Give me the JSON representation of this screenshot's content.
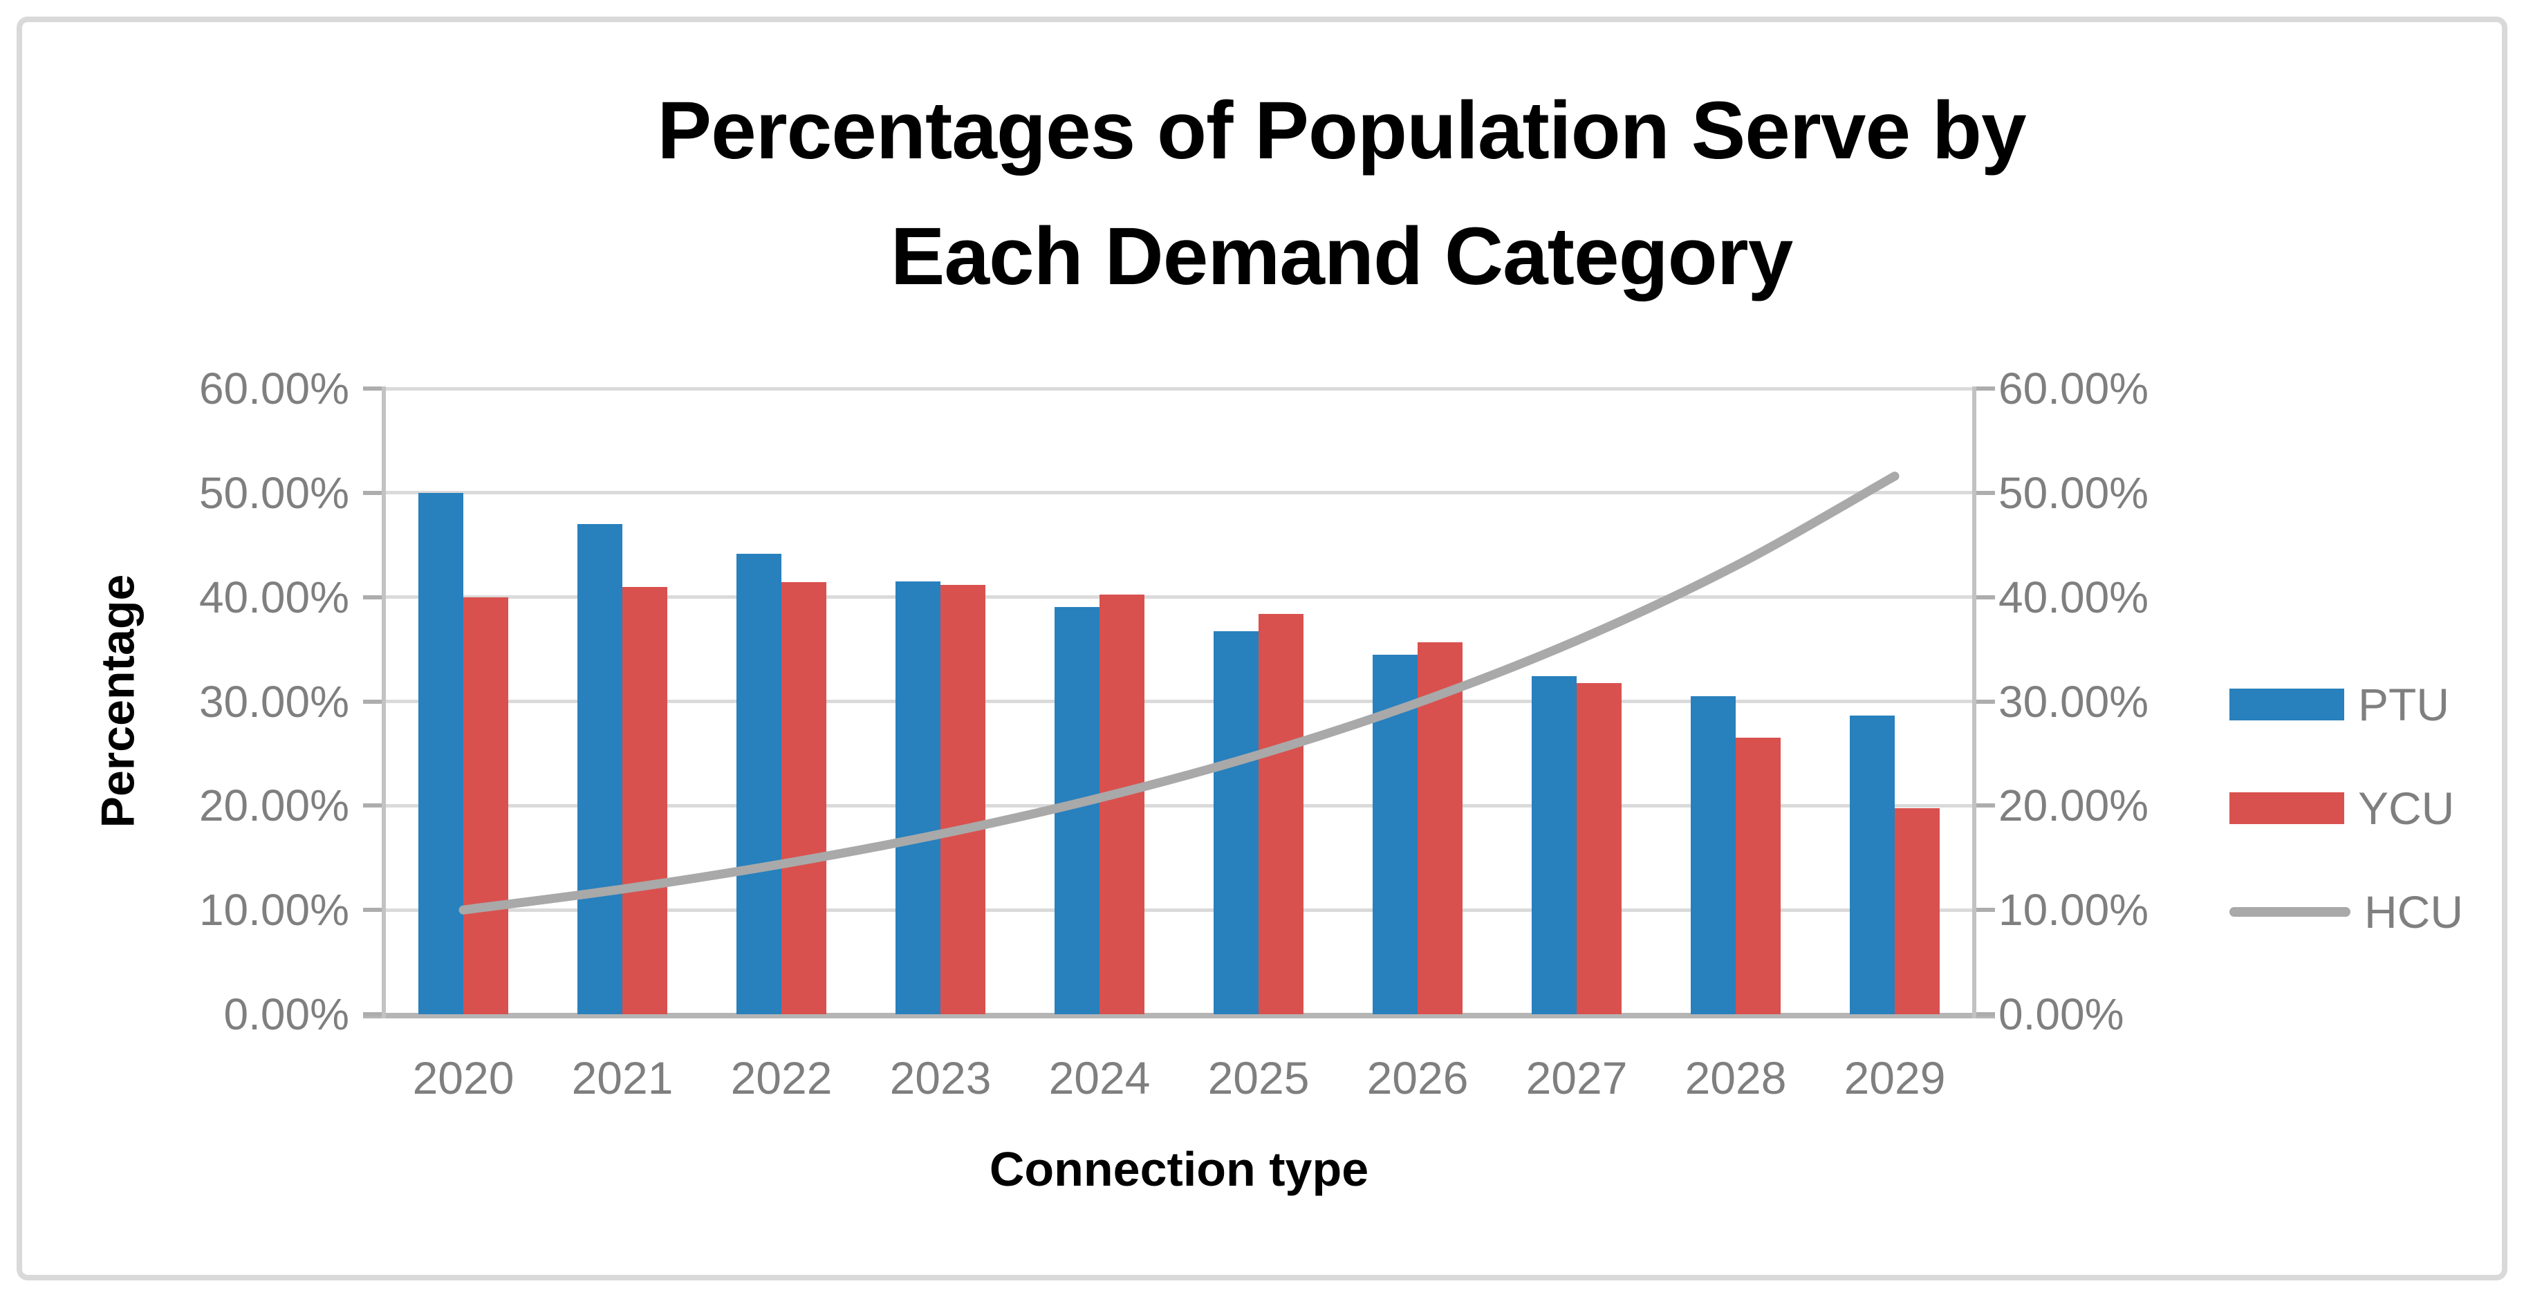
{
  "chart_data": {
    "type": "bar",
    "combo": "clustered bars with smooth overlay line, dual value axes",
    "title_lines": [
      "Percentages of Population Serve by",
      "Each Demand Category"
    ],
    "categories": [
      "2020",
      "2021",
      "2022",
      "2023",
      "2024",
      "2025",
      "2026",
      "2027",
      "2028",
      "2029"
    ],
    "series": [
      {
        "name": "PTU",
        "type": "bar",
        "color": "#2880BD",
        "values": [
          50.0,
          47.0,
          44.18,
          41.53,
          39.04,
          36.7,
          34.49,
          32.42,
          30.48,
          28.65
        ]
      },
      {
        "name": "YCU",
        "type": "bar",
        "color": "#D9514E",
        "values": [
          40.0,
          41.0,
          41.42,
          41.19,
          40.22,
          38.42,
          35.65,
          31.75,
          26.52,
          19.75
        ]
      },
      {
        "name": "HCU",
        "type": "line",
        "color": "#A9A9A9",
        "values": [
          10.0,
          12.0,
          14.4,
          17.28,
          20.74,
          24.88,
          29.86,
          35.83,
          43.0,
          51.6
        ]
      }
    ],
    "xlabel": "Connection type",
    "ylabel": "Percentage",
    "ylim": [
      0,
      60
    ],
    "y_tick_labels": [
      "0.00%",
      "10.00%",
      "20.00%",
      "30.00%",
      "40.00%",
      "50.00%",
      "60.00%"
    ],
    "dual_axis": true,
    "grid": true,
    "legend_position": "right",
    "colors": {
      "grid": "#DADADA",
      "axis_line": "#C2C2C2",
      "baseline": "#B5B5B5",
      "tick_mark": "#ADADAD",
      "axis_text": "#7F7F7F",
      "title_text": "#000000",
      "frame": "#D9D9D9",
      "background": "#FFFFFF"
    }
  }
}
